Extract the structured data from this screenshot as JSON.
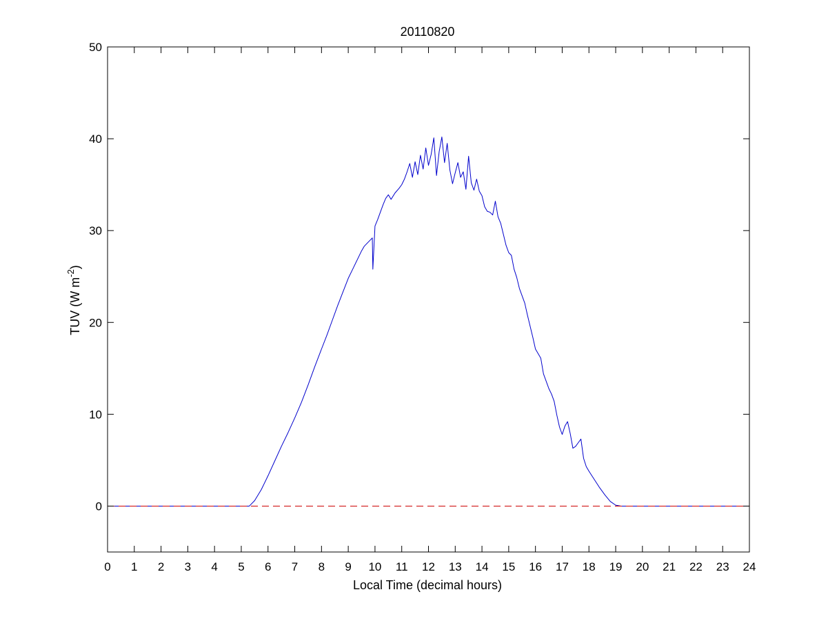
{
  "chart_data": {
    "type": "line",
    "title": "20110820",
    "xlabel": "Local Time (decimal hours)",
    "ylabel": {
      "text": "TUV (W m",
      "superscript": "-2",
      "suffix": ")"
    },
    "xlim": [
      0,
      24
    ],
    "ylim": [
      -5,
      50
    ],
    "xticks": [
      0,
      1,
      2,
      3,
      4,
      5,
      6,
      7,
      8,
      9,
      10,
      11,
      12,
      13,
      14,
      15,
      16,
      17,
      18,
      19,
      20,
      21,
      22,
      23,
      24
    ],
    "xtick_labels": [
      "0",
      "1",
      "2",
      "3",
      "4",
      "5",
      "6",
      "7",
      "8",
      "9",
      "10",
      "11",
      "12",
      "13",
      "14",
      "15",
      "16",
      "17",
      "18",
      "19",
      "20",
      "21",
      "22",
      "23",
      "24"
    ],
    "yticks": [
      0,
      10,
      20,
      30,
      40,
      50
    ],
    "ytick_labels": [
      "0",
      "10",
      "20",
      "30",
      "40",
      "50"
    ],
    "grid": false,
    "legend": "none",
    "colors": {
      "series": "#0000cc",
      "baseline": "#cc0000",
      "axes": "#000000"
    },
    "series": [
      {
        "style": "solid",
        "color": "#0000cc",
        "x": [
          0,
          5.3,
          5.5,
          5.75,
          6.0,
          6.25,
          6.5,
          6.75,
          7.0,
          7.25,
          7.5,
          7.75,
          8.0,
          8.2,
          8.4,
          8.6,
          8.8,
          9.0,
          9.2,
          9.4,
          9.5,
          9.6,
          9.8,
          9.9,
          9.92,
          10.0,
          10.1,
          10.2,
          10.3,
          10.4,
          10.5,
          10.6,
          10.75,
          10.9,
          11.0,
          11.1,
          11.2,
          11.3,
          11.4,
          11.5,
          11.6,
          11.7,
          11.8,
          11.9,
          12.0,
          12.1,
          12.2,
          12.3,
          12.4,
          12.5,
          12.6,
          12.7,
          12.8,
          12.9,
          13.0,
          13.1,
          13.2,
          13.3,
          13.4,
          13.5,
          13.6,
          13.7,
          13.8,
          13.9,
          14.0,
          14.1,
          14.2,
          14.3,
          14.4,
          14.5,
          14.6,
          14.7,
          14.8,
          14.9,
          15.0,
          15.1,
          15.2,
          15.3,
          15.4,
          15.5,
          15.6,
          15.7,
          15.8,
          15.9,
          16.0,
          16.1,
          16.2,
          16.3,
          16.4,
          16.5,
          16.6,
          16.7,
          16.8,
          16.9,
          17.0,
          17.1,
          17.2,
          17.3,
          17.4,
          17.5,
          17.6,
          17.7,
          17.8,
          17.9,
          18.0,
          18.2,
          18.4,
          18.6,
          18.8,
          19.0,
          19.2,
          24
        ],
        "y": [
          0,
          0,
          0.6,
          1.8,
          3.3,
          4.9,
          6.5,
          8.0,
          9.6,
          11.3,
          13.2,
          15.2,
          17.1,
          18.6,
          20.2,
          21.8,
          23.3,
          24.8,
          26.0,
          27.2,
          27.8,
          28.3,
          28.9,
          29.2,
          25.8,
          30.5,
          31.2,
          32.0,
          32.8,
          33.5,
          33.9,
          33.4,
          34.1,
          34.6,
          35.0,
          35.6,
          36.4,
          37.3,
          35.8,
          37.5,
          36.1,
          38.2,
          36.7,
          39.0,
          37.1,
          38.3,
          40.1,
          36.0,
          38.6,
          40.2,
          37.4,
          39.5,
          36.6,
          35.1,
          36.3,
          37.4,
          35.8,
          36.4,
          34.5,
          38.1,
          35.2,
          34.4,
          35.6,
          34.3,
          33.8,
          32.6,
          32.1,
          32.0,
          31.7,
          33.2,
          31.5,
          30.8,
          29.6,
          28.4,
          27.6,
          27.3,
          25.8,
          24.9,
          23.7,
          22.9,
          22.1,
          20.8,
          19.6,
          18.4,
          17.1,
          16.6,
          16.1,
          14.4,
          13.6,
          12.8,
          12.2,
          11.4,
          9.9,
          8.6,
          7.8,
          8.7,
          9.2,
          7.9,
          6.3,
          6.5,
          6.9,
          7.3,
          5.2,
          4.3,
          3.8,
          2.9,
          2.0,
          1.2,
          0.5,
          0.1,
          0,
          0
        ]
      },
      {
        "style": "dashed",
        "color": "#cc0000",
        "x": [
          0,
          24
        ],
        "y": [
          0,
          0
        ]
      }
    ]
  }
}
